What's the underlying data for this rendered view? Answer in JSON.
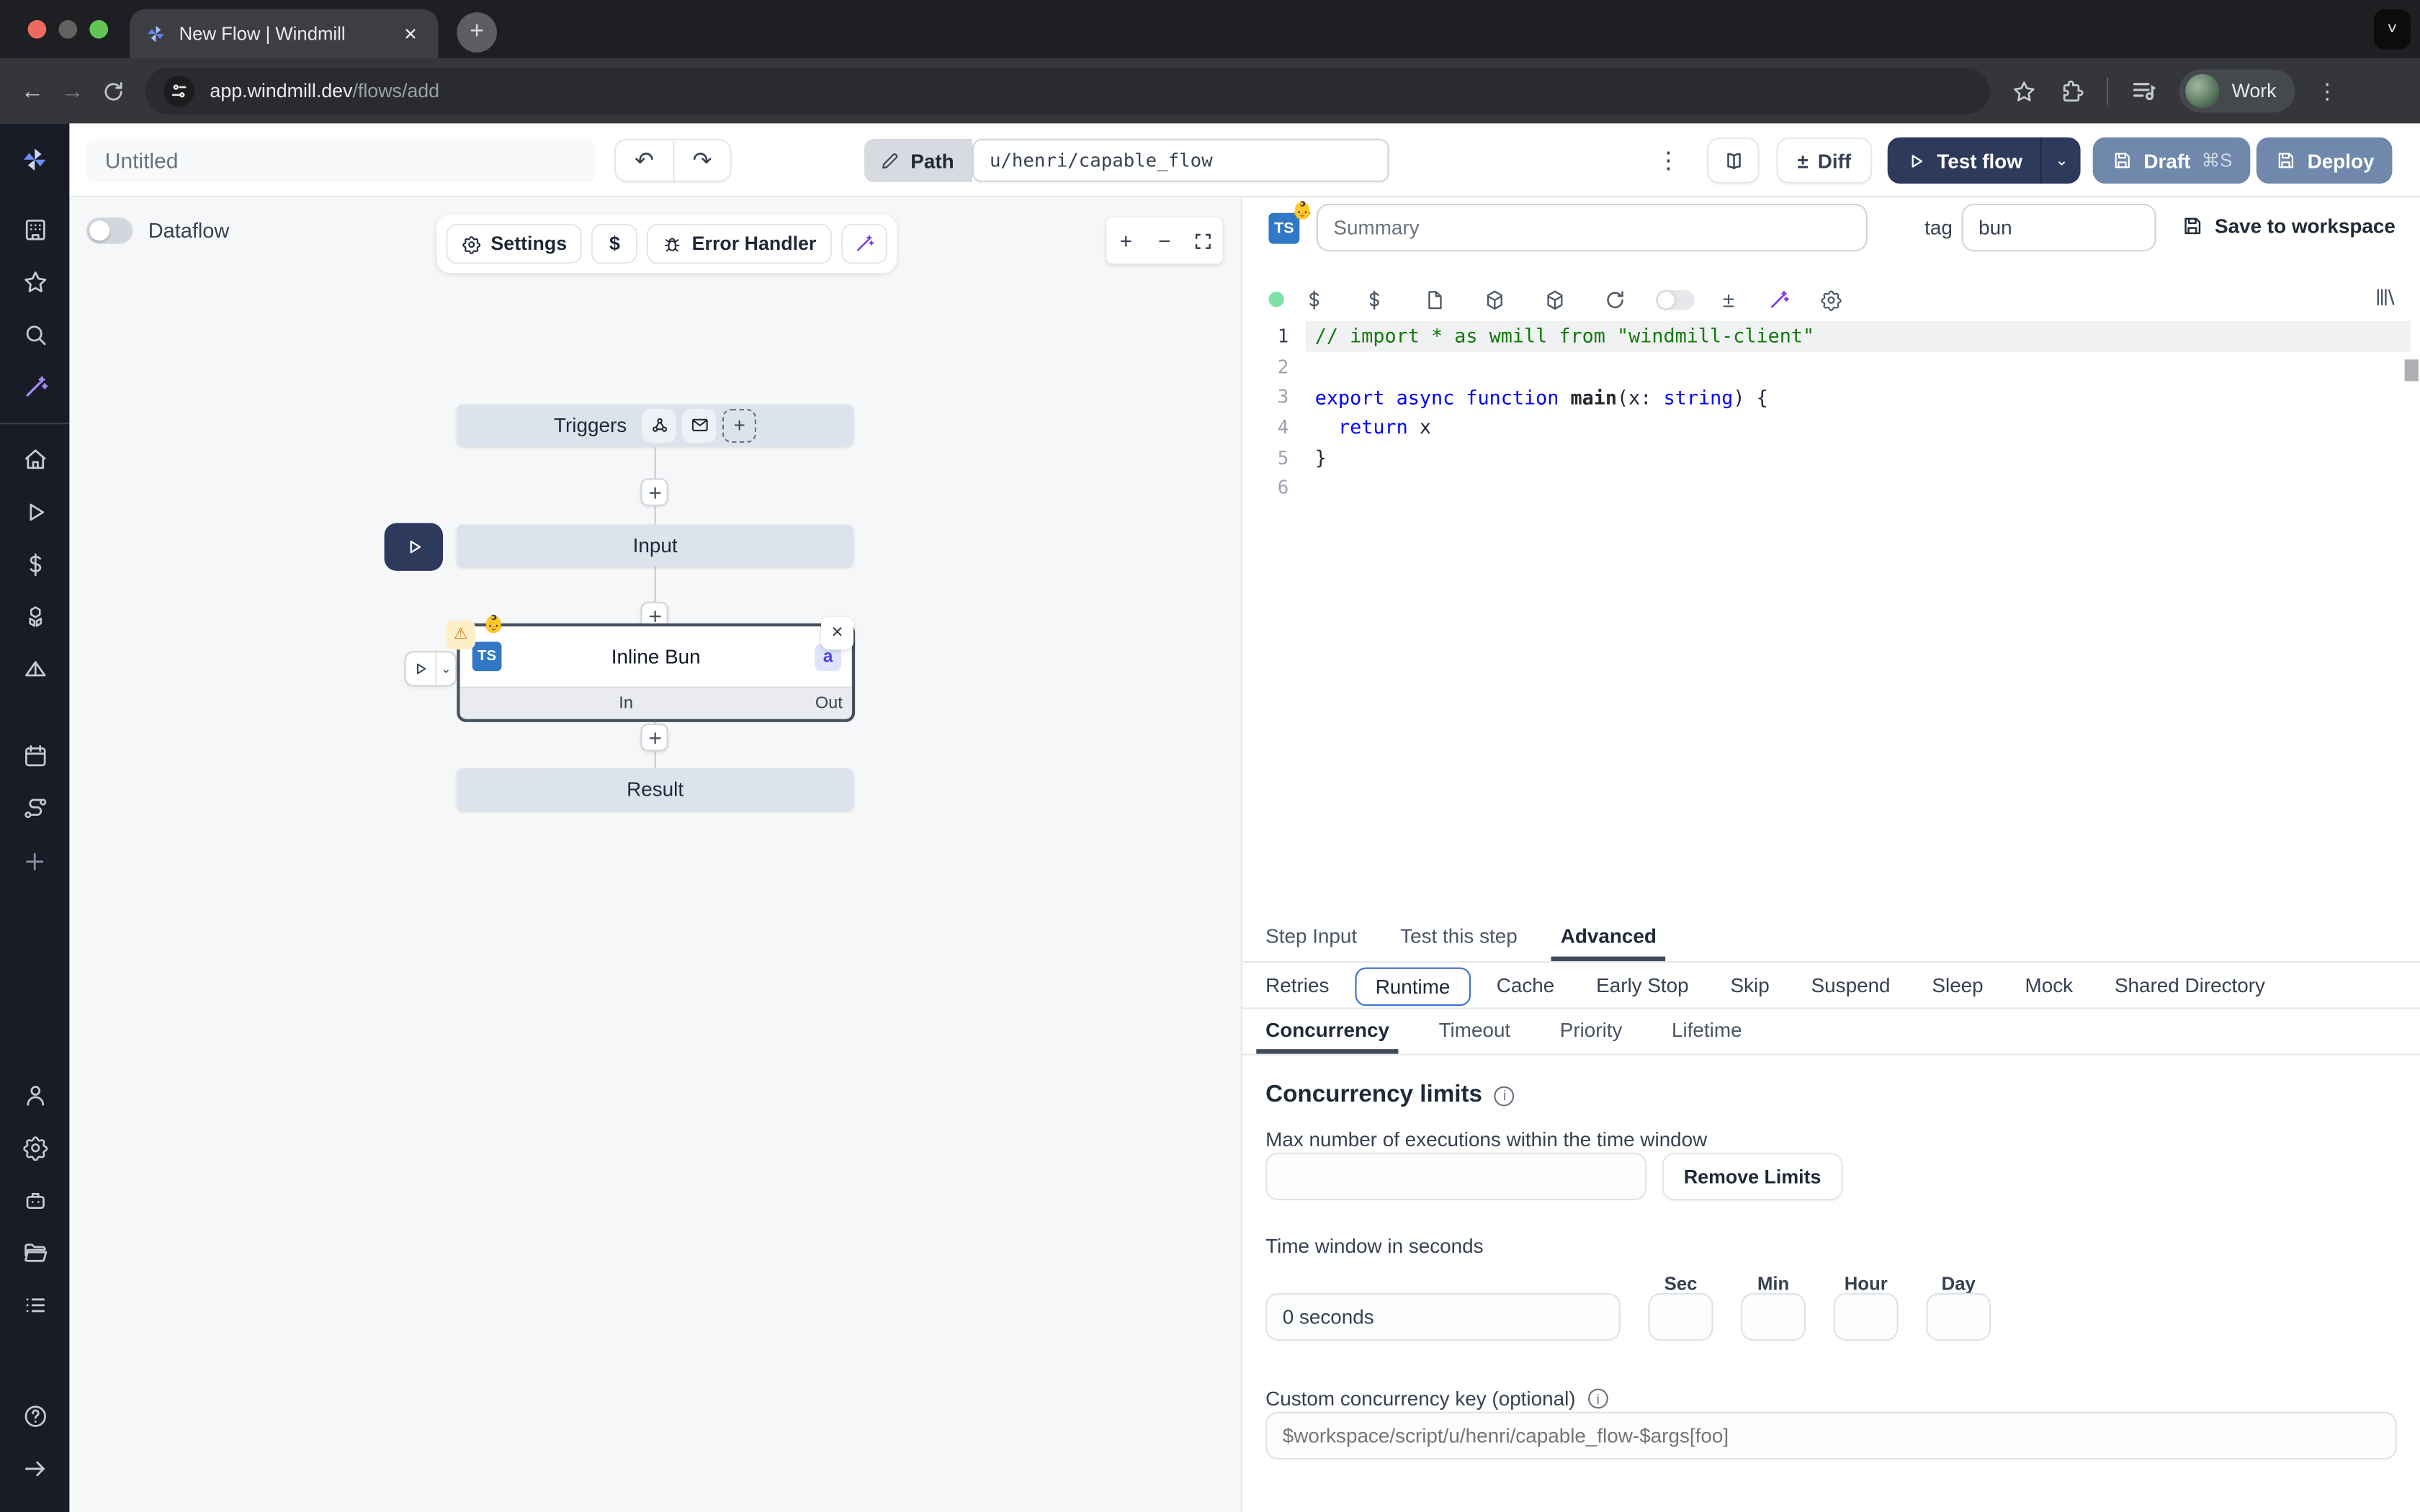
{
  "browser": {
    "tab_title": "New Flow | Windmill",
    "close_icon": "✕",
    "newtab_icon": "+",
    "chevron_icon": "˅",
    "back_icon": "←",
    "forward_icon": "→",
    "url_host": "app.windmill.dev",
    "url_path": "/flows/add",
    "profile_label": "Work",
    "kebab_icon": "⋮"
  },
  "topbar": {
    "untitled_placeholder": "Untitled",
    "undo_icon": "↶",
    "redo_icon": "↷",
    "path_label": "Path",
    "path_value": "u/henri/capable_flow",
    "more_icon": "⋮",
    "diff_icon": "±",
    "diff_label": "Diff",
    "test_flow_label": "Test flow",
    "test_flow_chevron": "⌄",
    "draft_label": "Draft",
    "draft_shortcut": "⌘S",
    "deploy_label": "Deploy"
  },
  "canvas": {
    "dataflow_label": "Dataflow",
    "settings_label": "Settings",
    "dollar_label": "$",
    "error_handler_label": "Error Handler",
    "zoom_in_icon": "+",
    "zoom_out_icon": "−",
    "triggers_label": "Triggers",
    "dashed_plus_icon": "+",
    "input_label": "Input",
    "step_title": "Inline Bun",
    "step_lang_badge": "TS",
    "step_emoji": "👶",
    "step_id_badge": "a",
    "in_label": "In",
    "out_label": "Out",
    "result_label": "Result",
    "warning_icon": "⚠",
    "close_icon": "✕",
    "run_chevron": "⌄"
  },
  "panel": {
    "lang_badge": "TS",
    "emoji": "👶",
    "summary_placeholder": "Summary",
    "tag_label": "tag",
    "tag_value": "bun",
    "save_label": "Save to workspace",
    "diff_icon": "±",
    "editor": {
      "lines": [
        {
          "n": "1",
          "active": true,
          "tokens": [
            {
              "c": "comment",
              "t": "// import * as wmill from \"windmill-client\""
            }
          ]
        },
        {
          "n": "2",
          "tokens": []
        },
        {
          "n": "3",
          "tokens": [
            {
              "c": "kw",
              "t": "export async function"
            },
            {
              "c": "plain",
              "t": " "
            },
            {
              "c": "fn",
              "t": "main"
            },
            {
              "c": "plain",
              "t": "(x: "
            },
            {
              "c": "type",
              "t": "string"
            },
            {
              "c": "plain",
              "t": ") {"
            }
          ]
        },
        {
          "n": "4",
          "tokens": [
            {
              "c": "plain",
              "t": "  "
            },
            {
              "c": "kw",
              "t": "return"
            },
            {
              "c": "plain",
              "t": " x"
            }
          ]
        },
        {
          "n": "5",
          "tokens": [
            {
              "c": "plain",
              "t": "}"
            }
          ]
        },
        {
          "n": "6",
          "tokens": []
        }
      ]
    },
    "tabs": [
      {
        "label": "Step Input"
      },
      {
        "label": "Test this step"
      },
      {
        "label": "Advanced"
      }
    ],
    "subtabs": [
      {
        "label": "Retries"
      },
      {
        "label": "Runtime"
      },
      {
        "label": "Cache"
      },
      {
        "label": "Early Stop"
      },
      {
        "label": "Skip"
      },
      {
        "label": "Suspend"
      },
      {
        "label": "Sleep"
      },
      {
        "label": "Mock"
      },
      {
        "label": "Shared Directory"
      }
    ],
    "subtabs2": [
      {
        "label": "Concurrency"
      },
      {
        "label": "Timeout"
      },
      {
        "label": "Priority"
      },
      {
        "label": "Lifetime"
      }
    ],
    "concurrency": {
      "title": "Concurrency limits",
      "info_icon": "i",
      "max_label": "Max number of executions within the time window",
      "remove_button": "Remove Limits",
      "window_label": "Time window in seconds",
      "window_value": "0 seconds",
      "columns": [
        "Sec",
        "Min",
        "Hour",
        "Day"
      ],
      "key_label": "Custom concurrency key (optional)",
      "key_placeholder": "$workspace/script/u/henri/capable_flow-$args[foo]"
    }
  },
  "sidebar": {
    "icons": [
      "windmill-logo",
      "workspace",
      "favorites",
      "search",
      "ai-wand",
      "home",
      "runs",
      "variables",
      "resources",
      "apps",
      "schedules",
      "flows",
      "create",
      "users",
      "settings",
      "workers",
      "folders",
      "audit-logs",
      "help",
      "collapse"
    ]
  },
  "colors": {
    "navy_button": "#2e3a5c",
    "slate_blue_button": "#6f88ab",
    "selected_border_blue": "#3b6fd4",
    "ts_badge_blue": "#3178c6",
    "ai_purple": "#8b5cf6",
    "green_status_dot": "#7ee2a8",
    "warning_bg": "#fdf0c9",
    "warning_fg": "#d97706",
    "node_bg": "#dde3ed",
    "sidebar_bg": "#171c26"
  }
}
